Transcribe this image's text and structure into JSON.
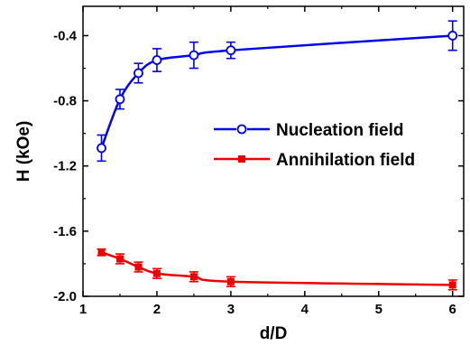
{
  "chart_data": {
    "type": "line",
    "title": "",
    "xlabel": "d/D",
    "ylabel": "H (kOe)",
    "xlim": [
      1,
      6.15
    ],
    "ylim": [
      -2.0,
      -0.22
    ],
    "x_ticks": [
      1,
      2,
      3,
      4,
      5,
      6
    ],
    "y_ticks": [
      -0.4,
      -0.8,
      -1.2,
      -1.6,
      -2.0
    ],
    "y_tick_labels": [
      "-0.4",
      "-0.8",
      "-1.2",
      "-1.6",
      "-2.0"
    ],
    "grid": false,
    "legend_position": "center-right",
    "series": [
      {
        "name": "Nucleation field",
        "color": "#0000ee",
        "marker": "open-circle",
        "x": [
          1.25,
          1.5,
          1.75,
          2.0,
          2.5,
          3.0,
          6.0
        ],
        "y": [
          -1.09,
          -0.79,
          -0.63,
          -0.55,
          -0.52,
          -0.49,
          -0.4
        ],
        "err": [
          0.08,
          0.06,
          0.06,
          0.07,
          0.08,
          0.05,
          0.09
        ]
      },
      {
        "name": "Annihilation field",
        "color": "#ee0000",
        "marker": "filled-square",
        "x": [
          1.25,
          1.5,
          1.75,
          2.0,
          2.5,
          3.0,
          6.0
        ],
        "y": [
          -1.73,
          -1.77,
          -1.82,
          -1.86,
          -1.88,
          -1.91,
          -1.93
        ],
        "err": [
          0.02,
          0.03,
          0.03,
          0.03,
          0.03,
          0.03,
          0.03
        ]
      }
    ]
  }
}
